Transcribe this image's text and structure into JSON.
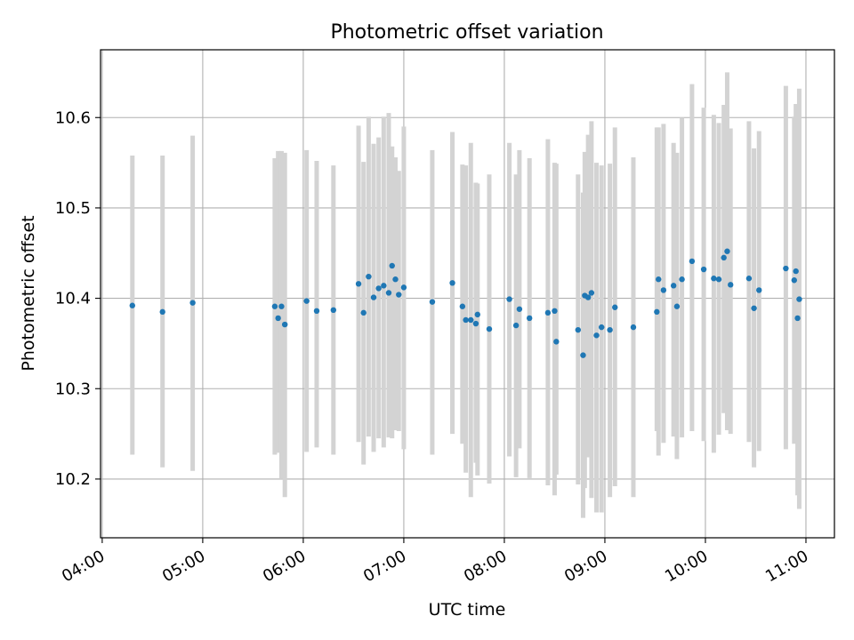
{
  "chart_data": {
    "type": "scatter",
    "title": "Photometric offset variation",
    "xlabel": "UTC time",
    "ylabel": "Photometric offset",
    "x_axis_kind": "time",
    "x_ticks": [
      "04:00",
      "05:00",
      "06:00",
      "07:00",
      "08:00",
      "09:00",
      "10:00",
      "11:00"
    ],
    "y_ticks": [
      "10.2",
      "10.3",
      "10.4",
      "10.5",
      "10.6"
    ],
    "xlim": [
      "03:59",
      "11:17"
    ],
    "ylim": [
      10.135,
      10.675
    ],
    "grid": true,
    "colors": {
      "marker": "#1f77b4",
      "errorbar": "#d3d3d3",
      "grid": "#b0b0b0"
    },
    "series": [
      {
        "x": [
          "04:18",
          "04:36",
          "04:54",
          "05:43",
          "05:45",
          "05:47",
          "05:49",
          "06:02",
          "06:08",
          "06:18",
          "06:33",
          "06:36",
          "06:39",
          "06:42",
          "06:45",
          "06:48",
          "06:51",
          "06:53",
          "06:55",
          "06:57",
          "07:00",
          "07:17",
          "07:29",
          "07:35",
          "07:37",
          "07:40",
          "07:43",
          "07:44",
          "07:51",
          "08:03",
          "08:07",
          "08:09",
          "08:15",
          "08:26",
          "08:30",
          "08:31",
          "08:44",
          "08:47",
          "08:48",
          "08:50",
          "08:52",
          "08:55",
          "08:58",
          "09:03",
          "09:06",
          "09:17",
          "09:31",
          "09:32",
          "09:35",
          "09:41",
          "09:43",
          "09:46",
          "09:52",
          "09:59",
          "10:05",
          "10:08",
          "10:11",
          "10:13",
          "10:15",
          "10:26",
          "10:29",
          "10:32",
          "10:48",
          "10:53",
          "10:54",
          "10:55",
          "10:56"
        ],
        "y": [
          10.392,
          10.385,
          10.395,
          10.391,
          10.378,
          10.391,
          10.371,
          10.397,
          10.386,
          10.387,
          10.416,
          10.384,
          10.424,
          10.401,
          10.411,
          10.414,
          10.406,
          10.436,
          10.421,
          10.404,
          10.412,
          10.396,
          10.417,
          10.391,
          10.376,
          10.376,
          10.372,
          10.382,
          10.366,
          10.399,
          10.37,
          10.388,
          10.378,
          10.384,
          10.386,
          10.352,
          10.365,
          10.337,
          10.403,
          10.401,
          10.406,
          10.359,
          10.368,
          10.365,
          10.39,
          10.368,
          10.385,
          10.421,
          10.409,
          10.414,
          10.391,
          10.421,
          10.441,
          10.432,
          10.422,
          10.421,
          10.445,
          10.452,
          10.415,
          10.422,
          10.389,
          10.409,
          10.433,
          10.42,
          10.43,
          10.378,
          10.399
        ],
        "y_lower": [
          10.227,
          10.213,
          10.209,
          10.227,
          10.229,
          10.2,
          10.18,
          10.23,
          10.235,
          10.227,
          10.241,
          10.216,
          10.247,
          10.23,
          10.245,
          10.235,
          10.246,
          10.245,
          10.254,
          10.253,
          10.233,
          10.227,
          10.25,
          10.239,
          10.207,
          10.18,
          10.218,
          10.204,
          10.195,
          10.225,
          10.202,
          10.234,
          10.201,
          10.193,
          10.182,
          10.205,
          10.194,
          10.157,
          10.19,
          10.224,
          10.179,
          10.163,
          10.163,
          10.18,
          10.192,
          10.18,
          10.253,
          10.226,
          10.24,
          10.247,
          10.222,
          10.246,
          10.253,
          10.242,
          10.229,
          10.249,
          10.273,
          10.254,
          10.25,
          10.241,
          10.213,
          10.231,
          10.233,
          10.239,
          10.247,
          10.182,
          10.167
        ],
        "y_upper": [
          10.558,
          10.558,
          10.58,
          10.555,
          10.563,
          10.563,
          10.561,
          10.564,
          10.552,
          10.547,
          10.591,
          10.551,
          10.601,
          10.571,
          10.578,
          10.601,
          10.605,
          10.568,
          10.556,
          10.541,
          10.59,
          10.564,
          10.584,
          10.548,
          10.547,
          10.572,
          10.528,
          10.527,
          10.537,
          10.572,
          10.537,
          10.564,
          10.555,
          10.576,
          10.55,
          10.549,
          10.537,
          10.517,
          10.562,
          10.581,
          10.596,
          10.55,
          10.547,
          10.549,
          10.589,
          10.556,
          10.589,
          10.589,
          10.593,
          10.572,
          10.561,
          10.6,
          10.637,
          10.611,
          10.603,
          10.594,
          10.614,
          10.65,
          10.588,
          10.596,
          10.566,
          10.585,
          10.635,
          10.601,
          10.615,
          10.598,
          10.632
        ]
      }
    ]
  }
}
